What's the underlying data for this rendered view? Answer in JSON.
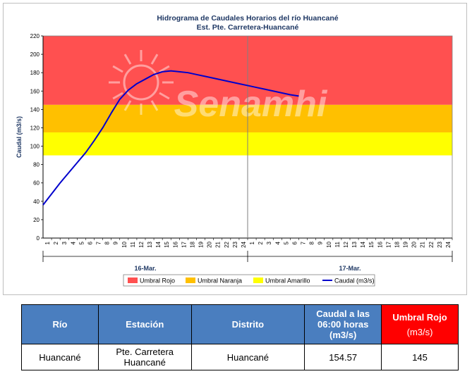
{
  "chart_data": {
    "type": "line",
    "title": "Hidrograma de Caudales Horarios del río Huancané",
    "subtitle": "Est. Pte. Carretera-Huancané",
    "ylabel": "Caudal  (m3/s)",
    "ylim": [
      0,
      220
    ],
    "yticks": [
      "0",
      "20",
      "40",
      "60",
      "80",
      "100",
      "120",
      "140",
      "160",
      "180",
      "200",
      "220"
    ],
    "xticks": [
      "1",
      "2",
      "3",
      "4",
      "5",
      "6",
      "7",
      "8",
      "9",
      "10",
      "11",
      "12",
      "13",
      "14",
      "15",
      "16",
      "17",
      "18",
      "19",
      "20",
      "21",
      "22",
      "23",
      "24",
      "1",
      "2",
      "3",
      "4",
      "5",
      "6",
      "7",
      "8",
      "9",
      "10",
      "11",
      "12",
      "13",
      "14",
      "15",
      "16",
      "17",
      "18",
      "19",
      "20",
      "21",
      "22",
      "23",
      "24"
    ],
    "day_labels": [
      "16-Mar.",
      "17-Mar."
    ],
    "watermark": "Senamhi",
    "thresholds": [
      {
        "name": "Umbral Rojo",
        "from": 145,
        "to": 220,
        "color": "#ff5050"
      },
      {
        "name": "Umbral Naranja",
        "from": 115,
        "to": 145,
        "color": "#ffc000"
      },
      {
        "name": "Umbral Amarillo",
        "from": 90,
        "to": 115,
        "color": "#ffff00"
      }
    ],
    "series": [
      {
        "name": "Caudal (m3/s)",
        "color": "#0000cc",
        "x": [
          1,
          2,
          3,
          4,
          5,
          6,
          7,
          8,
          9,
          10,
          11,
          12,
          13,
          14,
          15,
          16,
          17,
          18,
          19,
          20,
          21,
          22,
          23,
          24,
          25,
          26,
          27,
          28,
          29,
          30,
          31
        ],
        "values": [
          36,
          48,
          60,
          71,
          82,
          93,
          106,
          120,
          136,
          151,
          161,
          168,
          173,
          178,
          181,
          182,
          181,
          180,
          178,
          176,
          174,
          172,
          170,
          168,
          166,
          164,
          162,
          160,
          158,
          156,
          154.57
        ]
      }
    ],
    "legend": [
      "Umbral Rojo",
      "Umbral Naranja",
      "Umbral Amarillo",
      "Caudal (m3/s)"
    ]
  },
  "table": {
    "headers": {
      "rio": "Río",
      "estacion": "Estación",
      "distrito": "Distrito",
      "caudal_line1": "Caudal a las",
      "caudal_line2": "06:00 horas",
      "caudal_line3": "(m3/s)",
      "umbral_line1": "Umbral Rojo",
      "umbral_line2": "(m3/s)"
    },
    "row": {
      "rio": "Huancané",
      "estacion_line1": "Pte. Carretera",
      "estacion_line2": "Huancané",
      "distrito": "Huancané",
      "caudal": "154.57",
      "umbral": "145"
    }
  }
}
